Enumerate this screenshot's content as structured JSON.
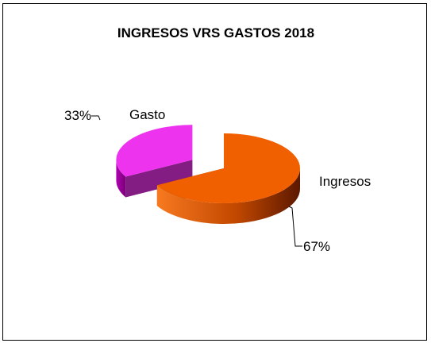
{
  "chart_data": {
    "type": "pie",
    "title": "INGRESOS VRS GASTOS 2018",
    "three_d": true,
    "legend": "none",
    "slices": [
      {
        "label": "Ingresos",
        "value": 67,
        "value_label": "67%",
        "color": "#f06000",
        "exploded": false
      },
      {
        "label": "Gasto",
        "value": 33,
        "value_label": "33%",
        "color": "#ee33ee",
        "exploded": true
      }
    ]
  }
}
